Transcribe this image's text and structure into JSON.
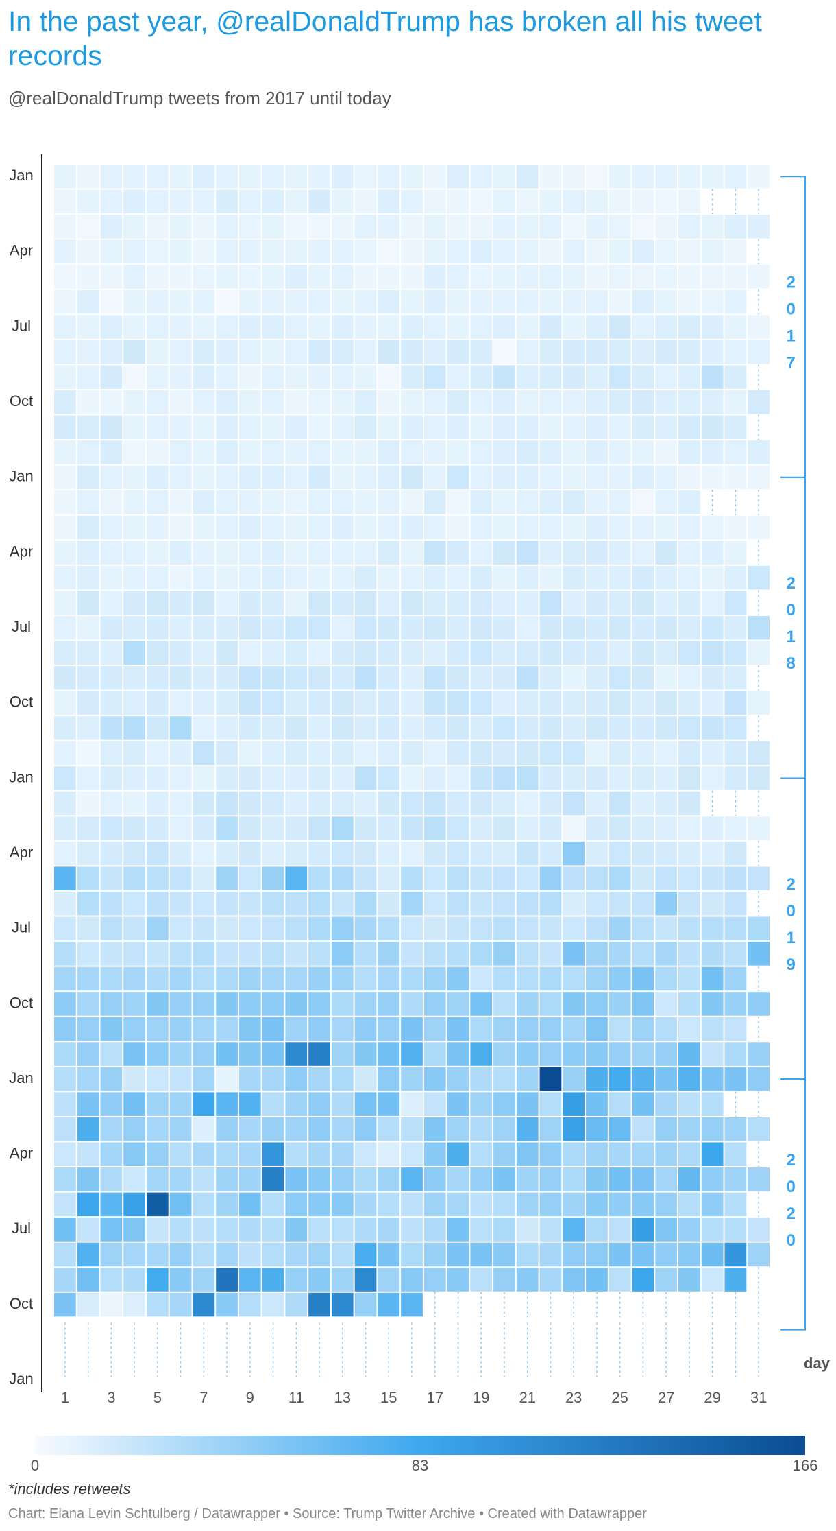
{
  "chart_data": {
    "type": "heatmap",
    "title": "In the past year, @realDonaldTrump has broken all his tweet records",
    "subtitle": "@realDonaldTrump tweets from 2017 until today",
    "x_label": "day",
    "xlim": [
      0.5,
      31.5
    ],
    "xticks": [
      1,
      3,
      5,
      7,
      9,
      11,
      13,
      15,
      17,
      19,
      21,
      23,
      25,
      27,
      29,
      31
    ],
    "ylim": [
      48.5,
      -0.5
    ],
    "yticks": [
      {
        "value": 0,
        "label": "Jan"
      },
      {
        "value": 3,
        "label": "Apr"
      },
      {
        "value": 6,
        "label": "Jul"
      },
      {
        "value": 9,
        "label": "Oct"
      },
      {
        "value": 12,
        "label": "Jan"
      },
      {
        "value": 15,
        "label": "Apr"
      },
      {
        "value": 18,
        "label": "Jul"
      },
      {
        "value": 21,
        "label": "Oct"
      },
      {
        "value": 24,
        "label": "Jan"
      },
      {
        "value": 27,
        "label": "Apr"
      },
      {
        "value": 30,
        "label": "Jul"
      },
      {
        "value": 33,
        "label": "Oct"
      },
      {
        "value": 36,
        "label": "Jan"
      },
      {
        "value": 39,
        "label": "Apr"
      },
      {
        "value": 42,
        "label": "Jul"
      },
      {
        "value": 45,
        "label": "Oct"
      },
      {
        "value": 48,
        "label": "Jan"
      }
    ],
    "years": [
      "2017",
      "2018",
      "2019",
      "2020"
    ],
    "zlim": [
      0,
      166
    ],
    "colorbar_ticks": [
      0,
      83,
      166
    ],
    "colorscale": [
      {
        "value": 0,
        "color": "#f7fbff"
      },
      {
        "value": 83,
        "color": "#3ea8ee"
      },
      {
        "value": 166,
        "color": "#0a4c94"
      }
    ],
    "rows": [
      [
        8,
        6,
        10,
        9,
        10,
        8,
        12,
        9,
        8,
        10,
        8,
        9,
        12,
        7,
        10,
        8,
        6,
        12,
        10,
        8,
        14,
        5,
        6,
        3,
        8,
        9,
        10,
        8,
        8,
        10,
        5
      ],
      [
        6,
        8,
        10,
        12,
        10,
        9,
        10,
        14,
        10,
        12,
        8,
        15,
        8,
        6,
        12,
        10,
        6,
        5,
        4,
        8,
        6,
        8,
        10,
        8,
        6,
        5,
        4,
        6,
        null,
        null,
        null
      ],
      [
        5,
        3,
        12,
        8,
        6,
        8,
        6,
        10,
        7,
        8,
        4,
        4,
        5,
        10,
        9,
        6,
        8,
        5,
        6,
        9,
        8,
        10,
        4,
        9,
        7,
        3,
        5,
        10,
        8,
        12,
        11
      ],
      [
        9,
        6,
        8,
        10,
        7,
        8,
        6,
        10,
        9,
        8,
        8,
        9,
        10,
        7,
        3,
        6,
        8,
        10,
        12,
        10,
        8,
        6,
        10,
        6,
        8,
        12,
        7,
        6,
        8,
        6,
        null
      ],
      [
        4,
        5,
        6,
        10,
        6,
        5,
        7,
        8,
        7,
        8,
        12,
        8,
        10,
        6,
        5,
        5,
        11,
        10,
        7,
        8,
        9,
        10,
        8,
        6,
        7,
        6,
        7,
        5,
        6,
        6,
        5
      ],
      [
        6,
        12,
        3,
        8,
        9,
        8,
        10,
        2,
        8,
        9,
        9,
        10,
        8,
        10,
        12,
        8,
        11,
        8,
        9,
        9,
        10,
        8,
        9,
        10,
        6,
        12,
        8,
        6,
        7,
        10,
        null
      ],
      [
        10,
        8,
        12,
        8,
        10,
        9,
        8,
        10,
        11,
        12,
        10,
        8,
        12,
        9,
        8,
        12,
        10,
        8,
        10,
        12,
        8,
        16,
        8,
        12,
        18,
        10,
        12,
        14,
        13,
        8,
        6
      ],
      [
        10,
        9,
        12,
        18,
        8,
        10,
        14,
        12,
        10,
        8,
        10,
        16,
        14,
        10,
        18,
        16,
        12,
        16,
        14,
        2,
        10,
        14,
        16,
        16,
        14,
        13,
        16,
        14,
        12,
        10,
        10
      ],
      [
        8,
        10,
        16,
        3,
        8,
        9,
        13,
        10,
        6,
        10,
        8,
        9,
        10,
        8,
        3,
        14,
        20,
        10,
        14,
        22,
        12,
        14,
        15,
        12,
        20,
        14,
        10,
        12,
        26,
        14,
        null
      ],
      [
        14,
        5,
        6,
        8,
        10,
        6,
        10,
        12,
        8,
        10,
        6,
        7,
        8,
        12,
        5,
        8,
        10,
        14,
        10,
        12,
        8,
        10,
        9,
        12,
        14,
        16,
        12,
        12,
        12,
        8,
        16
      ],
      [
        16,
        14,
        18,
        8,
        10,
        9,
        8,
        12,
        10,
        8,
        12,
        7,
        10,
        14,
        8,
        12,
        10,
        11,
        8,
        12,
        12,
        8,
        9,
        12,
        10,
        14,
        12,
        16,
        18,
        14,
        null
      ],
      [
        8,
        10,
        14,
        4,
        6,
        10,
        8,
        12,
        8,
        10,
        9,
        10,
        8,
        8,
        12,
        10,
        9,
        8,
        10,
        12,
        14,
        12,
        8,
        11,
        9,
        8,
        5,
        12,
        11,
        10,
        12
      ],
      [
        5,
        14,
        10,
        8,
        12,
        10,
        8,
        10,
        12,
        12,
        10,
        16,
        8,
        10,
        12,
        18,
        10,
        20,
        10,
        12,
        12,
        10,
        8,
        10,
        9,
        12,
        10,
        6,
        5,
        5,
        6
      ],
      [
        6,
        10,
        6,
        8,
        10,
        6,
        12,
        10,
        9,
        8,
        7,
        10,
        10,
        8,
        9,
        6,
        14,
        4,
        12,
        8,
        10,
        12,
        14,
        9,
        10,
        3,
        10,
        12,
        null,
        null,
        null
      ],
      [
        6,
        14,
        10,
        8,
        9,
        6,
        8,
        10,
        12,
        10,
        8,
        10,
        12,
        8,
        9,
        12,
        10,
        6,
        10,
        8,
        10,
        10,
        8,
        12,
        10,
        9,
        8,
        10,
        7,
        5,
        6
      ],
      [
        8,
        12,
        10,
        10,
        8,
        12,
        9,
        8,
        10,
        12,
        8,
        10,
        10,
        10,
        14,
        8,
        22,
        16,
        10,
        18,
        24,
        12,
        14,
        16,
        12,
        10,
        18,
        10,
        12,
        8,
        null
      ],
      [
        10,
        12,
        8,
        10,
        10,
        6,
        10,
        8,
        10,
        12,
        10,
        8,
        10,
        14,
        8,
        10,
        12,
        10,
        14,
        8,
        12,
        8,
        14,
        12,
        12,
        16,
        12,
        10,
        8,
        12,
        20
      ],
      [
        8,
        18,
        10,
        16,
        18,
        16,
        18,
        10,
        16,
        14,
        8,
        18,
        16,
        18,
        12,
        18,
        14,
        14,
        16,
        12,
        12,
        24,
        12,
        16,
        14,
        18,
        12,
        14,
        10,
        20,
        null
      ],
      [
        10,
        8,
        16,
        14,
        16,
        12,
        14,
        14,
        18,
        16,
        20,
        20,
        10,
        20,
        18,
        16,
        18,
        14,
        18,
        16,
        10,
        18,
        18,
        16,
        18,
        16,
        18,
        14,
        20,
        14,
        28
      ],
      [
        14,
        14,
        12,
        30,
        18,
        16,
        12,
        18,
        10,
        12,
        14,
        10,
        16,
        18,
        16,
        14,
        12,
        16,
        20,
        14,
        16,
        18,
        16,
        16,
        12,
        18,
        14,
        20,
        24,
        20,
        8
      ],
      [
        18,
        16,
        16,
        14,
        16,
        18,
        14,
        16,
        24,
        22,
        20,
        18,
        16,
        26,
        16,
        12,
        24,
        18,
        14,
        16,
        26,
        14,
        8,
        14,
        20,
        18,
        8,
        10,
        16,
        14,
        null
      ],
      [
        8,
        16,
        14,
        12,
        16,
        10,
        12,
        14,
        22,
        20,
        14,
        16,
        18,
        14,
        16,
        12,
        22,
        22,
        20,
        12,
        14,
        16,
        14,
        16,
        18,
        14,
        18,
        14,
        12,
        24,
        8
      ],
      [
        14,
        12,
        26,
        30,
        18,
        34,
        10,
        12,
        16,
        14,
        18,
        12,
        18,
        14,
        16,
        12,
        16,
        18,
        14,
        20,
        16,
        18,
        14,
        18,
        16,
        16,
        18,
        20,
        22,
        20,
        null
      ],
      [
        10,
        4,
        12,
        14,
        10,
        12,
        24,
        16,
        8,
        12,
        14,
        12,
        14,
        10,
        12,
        14,
        10,
        16,
        18,
        16,
        18,
        20,
        20,
        8,
        14,
        12,
        10,
        16,
        12,
        16,
        18
      ],
      [
        20,
        10,
        14,
        12,
        12,
        10,
        8,
        14,
        16,
        12,
        12,
        14,
        12,
        26,
        20,
        8,
        12,
        10,
        22,
        26,
        28,
        16,
        14,
        16,
        12,
        14,
        12,
        18,
        10,
        16,
        18
      ],
      [
        14,
        5,
        10,
        8,
        12,
        10,
        18,
        22,
        18,
        16,
        12,
        14,
        14,
        12,
        18,
        20,
        22,
        16,
        18,
        14,
        10,
        16,
        24,
        12,
        22,
        12,
        14,
        18,
        null,
        null,
        null
      ],
      [
        14,
        16,
        20,
        18,
        16,
        10,
        16,
        30,
        18,
        14,
        16,
        22,
        34,
        18,
        16,
        22,
        28,
        20,
        14,
        18,
        12,
        16,
        4,
        16,
        18,
        14,
        12,
        10,
        12,
        10,
        8
      ],
      [
        10,
        14,
        16,
        18,
        22,
        14,
        10,
        14,
        18,
        12,
        14,
        16,
        20,
        18,
        12,
        10,
        18,
        20,
        16,
        14,
        22,
        16,
        48,
        14,
        20,
        18,
        16,
        14,
        12,
        18,
        null
      ],
      [
        70,
        30,
        22,
        30,
        28,
        24,
        14,
        40,
        20,
        42,
        70,
        30,
        32,
        22,
        14,
        30,
        20,
        28,
        22,
        24,
        20,
        44,
        26,
        28,
        34,
        18,
        24,
        20,
        22,
        26,
        24
      ],
      [
        14,
        30,
        26,
        20,
        26,
        22,
        20,
        24,
        22,
        28,
        26,
        30,
        22,
        34,
        18,
        38,
        20,
        26,
        22,
        24,
        26,
        30,
        14,
        20,
        22,
        24,
        46,
        22,
        18,
        24,
        null
      ],
      [
        20,
        18,
        28,
        22,
        40,
        20,
        22,
        18,
        20,
        24,
        28,
        34,
        44,
        36,
        30,
        20,
        18,
        22,
        24,
        28,
        24,
        22,
        20,
        26,
        40,
        28,
        22,
        28,
        30,
        30,
        34
      ],
      [
        30,
        20,
        22,
        24,
        22,
        28,
        30,
        24,
        24,
        28,
        22,
        28,
        48,
        30,
        40,
        24,
        28,
        30,
        34,
        44,
        28,
        24,
        56,
        40,
        36,
        30,
        36,
        26,
        32,
        28,
        60
      ],
      [
        38,
        36,
        34,
        36,
        32,
        38,
        30,
        34,
        40,
        38,
        36,
        42,
        40,
        30,
        36,
        34,
        40,
        50,
        20,
        30,
        30,
        34,
        30,
        40,
        48,
        56,
        34,
        28,
        60,
        40,
        null
      ],
      [
        48,
        36,
        44,
        40,
        52,
        44,
        44,
        52,
        48,
        48,
        52,
        48,
        34,
        40,
        44,
        32,
        44,
        40,
        58,
        28,
        40,
        34,
        52,
        48,
        42,
        54,
        20,
        30,
        52,
        42,
        46
      ],
      [
        48,
        44,
        52,
        44,
        40,
        42,
        38,
        36,
        52,
        56,
        40,
        46,
        36,
        46,
        44,
        56,
        40,
        56,
        34,
        40,
        44,
        44,
        38,
        54,
        28,
        40,
        30,
        20,
        28,
        24,
        null
      ],
      [
        34,
        44,
        28,
        56,
        48,
        40,
        44,
        60,
        52,
        56,
        110,
        120,
        40,
        52,
        60,
        74,
        34,
        56,
        76,
        40,
        48,
        44,
        48,
        50,
        44,
        40,
        44,
        66,
        24,
        34,
        42
      ],
      [
        30,
        36,
        42,
        18,
        20,
        24,
        38,
        8,
        36,
        36,
        46,
        36,
        34,
        18,
        48,
        40,
        50,
        42,
        32,
        30,
        40,
        166,
        42,
        76,
        80,
        72,
        56,
        72,
        56,
        56,
        46
      ],
      [
        26,
        56,
        46,
        60,
        40,
        40,
        86,
        70,
        74,
        30,
        40,
        46,
        32,
        58,
        60,
        12,
        24,
        56,
        40,
        48,
        56,
        30,
        92,
        60,
        30,
        60,
        36,
        28,
        30,
        null,
        null
      ],
      [
        26,
        76,
        36,
        44,
        36,
        40,
        12,
        42,
        36,
        42,
        40,
        46,
        36,
        48,
        30,
        28,
        54,
        40,
        32,
        40,
        72,
        40,
        90,
        64,
        64,
        26,
        44,
        40,
        44,
        40,
        30
      ],
      [
        20,
        24,
        38,
        50,
        44,
        30,
        36,
        34,
        36,
        100,
        30,
        36,
        36,
        20,
        12,
        20,
        50,
        76,
        30,
        44,
        54,
        46,
        34,
        40,
        36,
        38,
        40,
        34,
        84,
        30,
        null
      ],
      [
        34,
        52,
        32,
        20,
        38,
        38,
        26,
        40,
        40,
        120,
        56,
        50,
        44,
        34,
        40,
        70,
        48,
        36,
        44,
        56,
        40,
        44,
        34,
        52,
        60,
        56,
        38,
        66,
        46,
        40,
        40
      ],
      [
        24,
        86,
        70,
        90,
        150,
        60,
        30,
        40,
        60,
        30,
        48,
        50,
        50,
        36,
        30,
        26,
        40,
        36,
        26,
        30,
        40,
        44,
        40,
        50,
        46,
        50,
        44,
        30,
        46,
        30,
        null
      ],
      [
        60,
        24,
        58,
        54,
        22,
        30,
        26,
        30,
        32,
        30,
        52,
        28,
        28,
        32,
        36,
        26,
        32,
        58,
        28,
        34,
        18,
        28,
        70,
        34,
        26,
        92,
        54,
        44,
        30,
        30,
        24
      ],
      [
        30,
        74,
        40,
        36,
        36,
        44,
        30,
        38,
        26,
        30,
        36,
        40,
        30,
        78,
        56,
        34,
        42,
        56,
        56,
        50,
        34,
        36,
        46,
        48,
        56,
        56,
        46,
        50,
        62,
        100,
        40
      ],
      [
        36,
        60,
        30,
        32,
        80,
        50,
        40,
        130,
        70,
        76,
        44,
        50,
        40,
        110,
        40,
        50,
        44,
        50,
        28,
        44,
        50,
        36,
        54,
        60,
        28,
        84,
        40,
        52,
        20,
        76,
        null
      ],
      [
        56,
        14,
        6,
        12,
        30,
        36,
        110,
        50,
        30,
        20,
        32,
        120,
        110,
        44,
        70,
        70,
        null,
        null,
        null,
        null,
        null,
        null,
        null,
        null,
        null,
        null,
        null,
        null,
        null,
        null,
        null
      ]
    ],
    "note": "*includes retweets",
    "footer": "Chart: Elana Levin Schtulberg / Datawrapper • Source: Trump Twitter Archive • Created with Datawrapper"
  }
}
